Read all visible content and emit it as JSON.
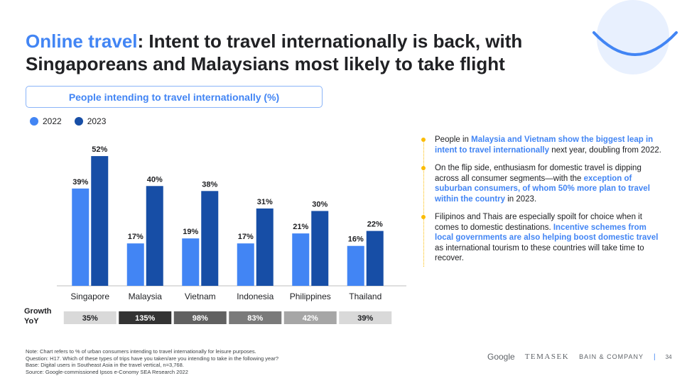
{
  "header": {
    "title_accent": "Online travel",
    "title_rest": ": Intent to travel internationally is back, with Singaporeans and Malaysians most likely to take flight"
  },
  "chart_title": "People intending to travel internationally (%)",
  "colors": {
    "y2022": "#4285f4",
    "y2023": "#174ea6",
    "accent": "#4285f4",
    "bullet": "#fbbc04"
  },
  "chart_data": {
    "type": "bar",
    "title": "People intending to travel internationally (%)",
    "categories": [
      "Singapore",
      "Malaysia",
      "Vietnam",
      "Indonesia",
      "Philippines",
      "Thailand"
    ],
    "series": [
      {
        "name": "2022",
        "values": [
          39,
          17,
          19,
          17,
          21,
          16
        ],
        "labels": [
          "39%",
          "17%",
          "19%",
          "17%",
          "21%",
          "16%"
        ]
      },
      {
        "name": "2023",
        "values": [
          52,
          40,
          38,
          31,
          30,
          22
        ],
        "labels": [
          "52%",
          "40%",
          "38%",
          "31%",
          "30%",
          "22%"
        ]
      }
    ],
    "ylim": [
      0,
      56
    ],
    "grid": false,
    "legend_position": "top-left",
    "growth": {
      "label": "Growth YoY",
      "values": [
        "35%",
        "135%",
        "98%",
        "83%",
        "42%",
        "39%"
      ],
      "colors": [
        "#d9d9d9",
        "#333333",
        "#616161",
        "#7a7a7a",
        "#a6a6a6",
        "#d9d9d9"
      ],
      "text_colors": [
        "#202124",
        "#ffffff",
        "#ffffff",
        "#ffffff",
        "#ffffff",
        "#202124"
      ]
    }
  },
  "bullets": [
    [
      {
        "t": "People in "
      },
      {
        "t": "Malaysia and Vietnam show the biggest leap in intent to travel internationally",
        "h": true
      },
      {
        "t": " next year, doubling from 2022."
      }
    ],
    [
      {
        "t": "On the flip side, enthusiasm for domestic travel is dipping across all consumer segments—with the "
      },
      {
        "t": "exception of suburban consumers, of whom 50% more plan to travel within the country",
        "h": true
      },
      {
        "t": " in 2023."
      }
    ],
    [
      {
        "t": "Filipinos and Thais are especially spoilt for choice when it comes to domestic destinations. "
      },
      {
        "t": "Incentive schemes from local governments are also helping boost domestic travel",
        "h": true
      },
      {
        "t": " as international tourism to these countries will take time to recover."
      }
    ]
  ],
  "notes": [
    "Note: Chart refers to % of urban consumers intending to travel internationally for leisure purposes.",
    "Question: H17. Which of these types of trips have you taken/are you intending to take in the following year?",
    "Base: Digital users in Southeast Asia in the travel vertical, n=3,768.",
    "Source: Google-commissioned Ipsos e-Conomy SEA Research 2022"
  ],
  "footer": {
    "google": "Google",
    "temasek": "TEMASEK",
    "bain": "BAIN & COMPANY",
    "separator": "|",
    "page": "34"
  }
}
